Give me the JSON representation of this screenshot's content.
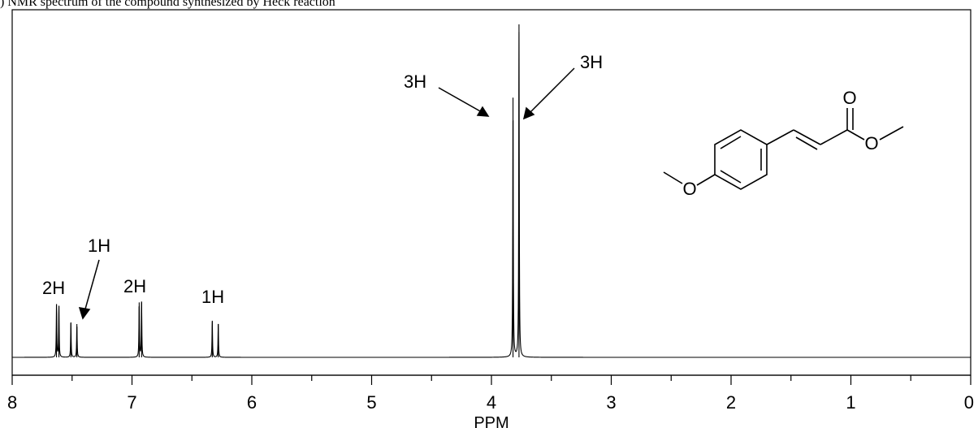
{
  "caption": ") NMR spectrum of the compound synthesized by Heck reaction",
  "chart_data": {
    "type": "line",
    "title": "",
    "xlabel": "PPM",
    "ylabel": "",
    "xlim": [
      8,
      0
    ],
    "x_reversed": true,
    "x_ticks": [
      8,
      7,
      6,
      5,
      4,
      3,
      2,
      1,
      0
    ],
    "x_tick_labels": [
      "8",
      "7",
      "6",
      "5",
      "4",
      "3",
      "2",
      "1",
      "0"
    ],
    "x_minor_tick_step": 0.5,
    "grid": false,
    "legend": "none",
    "line_color": "#000000",
    "peaks": [
      {
        "ppm": 7.63,
        "intensity": 0.16
      },
      {
        "ppm": 7.61,
        "intensity": 0.155
      },
      {
        "ppm": 7.51,
        "intensity": 0.105
      },
      {
        "ppm": 7.46,
        "intensity": 0.1
      },
      {
        "ppm": 6.94,
        "intensity": 0.165
      },
      {
        "ppm": 6.92,
        "intensity": 0.165
      },
      {
        "ppm": 6.33,
        "intensity": 0.11
      },
      {
        "ppm": 6.28,
        "intensity": 0.1
      },
      {
        "ppm": 3.82,
        "intensity": 0.78
      },
      {
        "ppm": 3.77,
        "intensity": 1.0
      }
    ],
    "annotations": [
      {
        "text": "2H",
        "ppm": 7.62
      },
      {
        "text": "1H",
        "ppm": 7.48,
        "arrow": true
      },
      {
        "text": "2H",
        "ppm": 6.93
      },
      {
        "text": "1H",
        "ppm": 6.3
      },
      {
        "text": "3H",
        "ppm": 3.82,
        "arrow": true
      },
      {
        "text": "3H",
        "ppm": 3.77,
        "arrow": true
      }
    ],
    "structure_atoms": [
      "O",
      "O",
      "O"
    ]
  }
}
